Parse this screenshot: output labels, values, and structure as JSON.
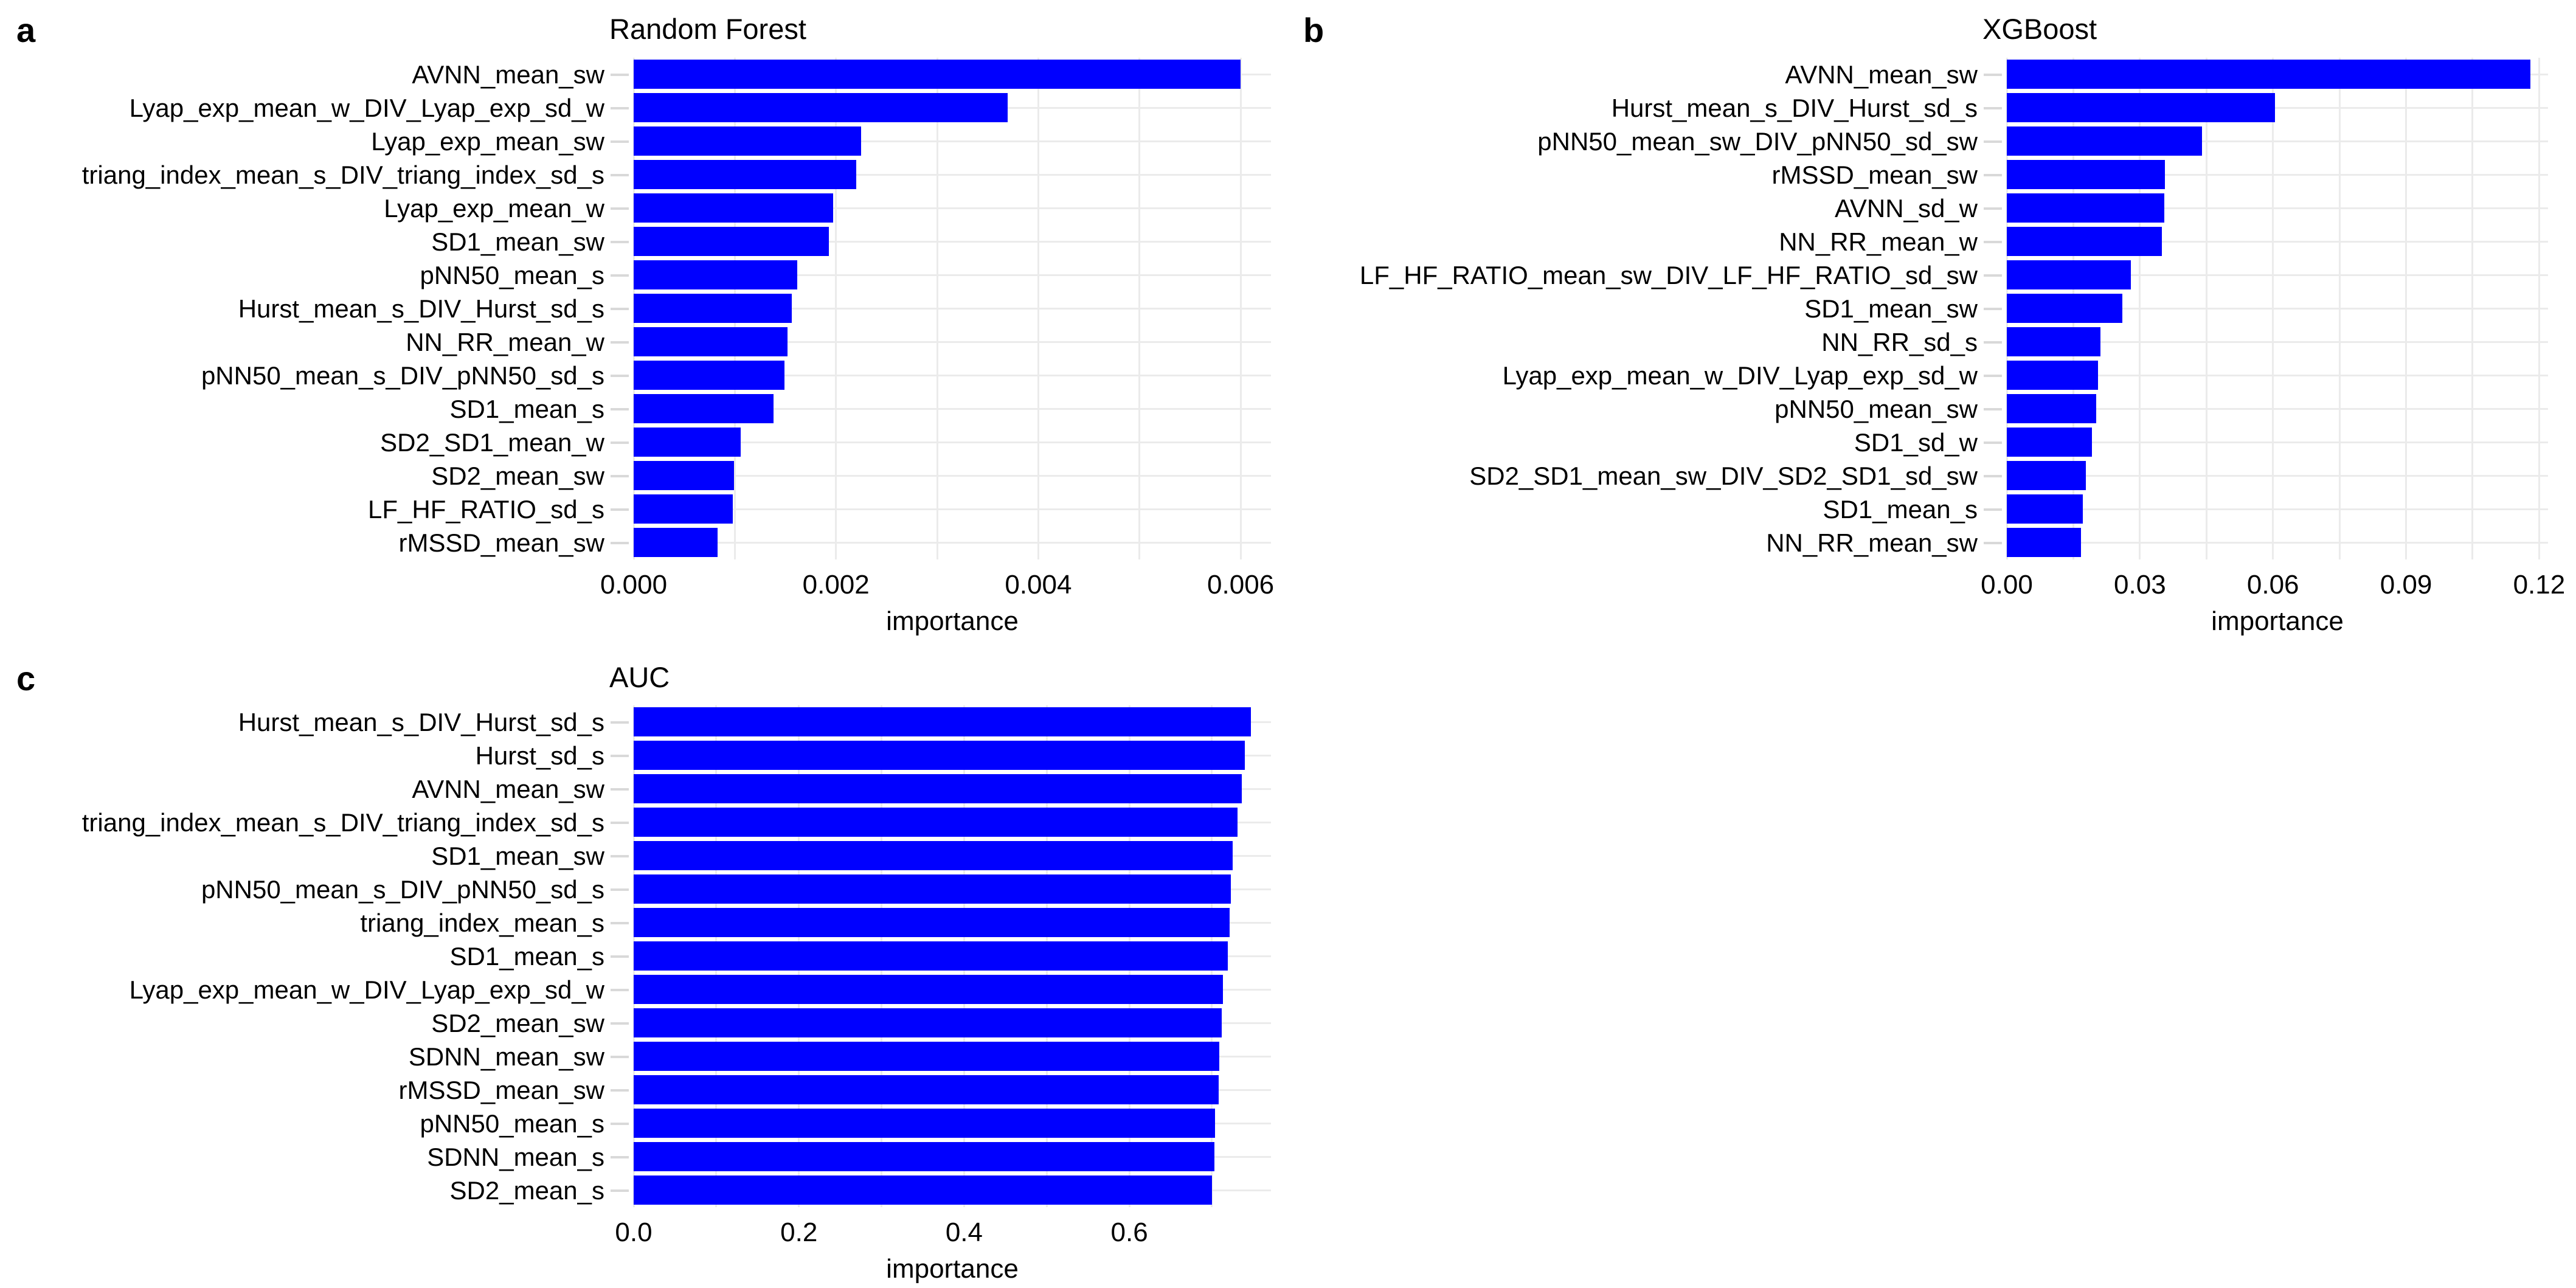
{
  "figure": {
    "background": "#ffffff",
    "colors": {
      "bar": "#0000ff",
      "grid": "#ebebeb",
      "axis_tick": "#d9d9d9",
      "text": "#000000"
    }
  },
  "chart_data": [
    {
      "panel_letter": "a",
      "title": "Random Forest",
      "type": "bar",
      "orientation": "horizontal",
      "xlabel": "importance",
      "xlim": [
        0,
        0.0063
      ],
      "grid": true,
      "x_ticks": {
        "values": [
          0,
          0.002,
          0.004,
          0.006
        ],
        "labels": [
          "0.000",
          "0.002",
          "0.004",
          "0.006"
        ]
      },
      "x_minor_ticks": [
        0.001,
        0.003,
        0.005
      ],
      "categories": [
        "AVNN_mean_sw",
        "Lyap_exp_mean_w_DIV_Lyap_exp_sd_w",
        "Lyap_exp_mean_sw",
        "triang_index_mean_s_DIV_triang_index_sd_s",
        "Lyap_exp_mean_w",
        "SD1_mean_sw",
        "pNN50_mean_s",
        "Hurst_mean_s_DIV_Hurst_sd_s",
        "NN_RR_mean_w",
        "pNN50_mean_s_DIV_pNN50_sd_s",
        "SD1_mean_s",
        "SD2_SD1_mean_w",
        "SD2_mean_sw",
        "LF_HF_RATIO_sd_s",
        "rMSSD_mean_sw"
      ],
      "values": [
        0.006,
        0.0037,
        0.00225,
        0.0022,
        0.00197,
        0.00193,
        0.00162,
        0.00156,
        0.00152,
        0.00149,
        0.00138,
        0.00106,
        0.00099,
        0.00098,
        0.00083
      ]
    },
    {
      "panel_letter": "b",
      "title": "XGBoost",
      "type": "bar",
      "orientation": "horizontal",
      "xlabel": "importance",
      "xlim": [
        0,
        0.122
      ],
      "grid": true,
      "x_ticks": {
        "values": [
          0,
          0.03,
          0.06,
          0.09,
          0.12
        ],
        "labels": [
          "0.00",
          "0.03",
          "0.06",
          "0.09",
          "0.12"
        ]
      },
      "x_minor_ticks": [
        0.015,
        0.045,
        0.075,
        0.105
      ],
      "categories": [
        "AVNN_mean_sw",
        "Hurst_mean_s_DIV_Hurst_sd_s",
        "pNN50_mean_sw_DIV_pNN50_sd_sw",
        "rMSSD_mean_sw",
        "AVNN_sd_w",
        "NN_RR_mean_w",
        "LF_HF_RATIO_mean_sw_DIV_LF_HF_RATIO_sd_sw",
        "SD1_mean_sw",
        "NN_RR_sd_s",
        "Lyap_exp_mean_w_DIV_Lyap_exp_sd_w",
        "pNN50_mean_sw",
        "SD1_sd_w",
        "SD2_SD1_mean_sw_DIV_SD2_SD1_sd_sw",
        "SD1_mean_s",
        "NN_RR_mean_sw"
      ],
      "values": [
        0.118,
        0.0605,
        0.044,
        0.0356,
        0.0355,
        0.0349,
        0.028,
        0.026,
        0.0211,
        0.0205,
        0.0202,
        0.0192,
        0.0178,
        0.0171,
        0.0167
      ]
    },
    {
      "panel_letter": "c",
      "title": "AUC",
      "type": "bar",
      "orientation": "horizontal",
      "xlabel": "importance",
      "xlim": [
        0,
        0.7714
      ],
      "grid": true,
      "x_ticks": {
        "values": [
          0,
          0.2,
          0.4,
          0.6
        ],
        "labels": [
          "0.0",
          "0.2",
          "0.4",
          "0.6"
        ]
      },
      "x_minor_ticks": [
        0.1,
        0.3,
        0.5,
        0.7
      ],
      "categories": [
        "Hurst_mean_s_DIV_Hurst_sd_s",
        "Hurst_sd_s",
        "AVNN_mean_sw",
        "triang_index_mean_s_DIV_triang_index_sd_s",
        "SD1_mean_sw",
        "pNN50_mean_s_DIV_pNN50_sd_s",
        "triang_index_mean_s",
        "SD1_mean_s",
        "Lyap_exp_mean_w_DIV_Lyap_exp_sd_w",
        "SD2_mean_sw",
        "SDNN_mean_sw",
        "rMSSD_mean_sw",
        "pNN50_mean_s",
        "SDNN_mean_s",
        "SD2_mean_s"
      ],
      "values": [
        0.747,
        0.74,
        0.736,
        0.731,
        0.725,
        0.723,
        0.721,
        0.719,
        0.713,
        0.712,
        0.709,
        0.708,
        0.704,
        0.703,
        0.7
      ]
    }
  ]
}
